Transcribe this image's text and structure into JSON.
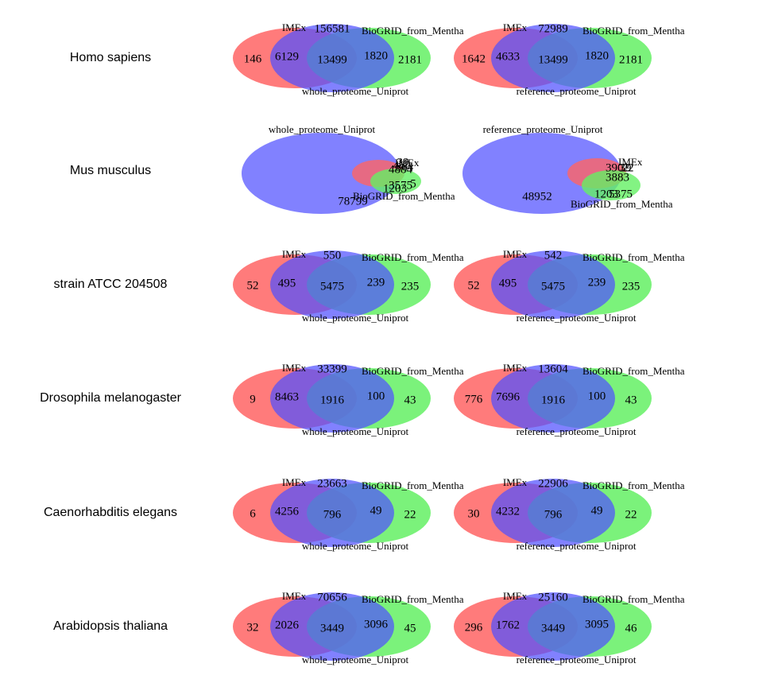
{
  "colors": {
    "red": "#ff6464",
    "blue": "#5050ff",
    "green": "#64f064"
  },
  "set_labels": {
    "imex": "IMEx",
    "biogrid": "BioGRID_from_Mentha",
    "whole": "whole_proteome_Uniprot",
    "reference": "reference_proteome_Uniprot"
  },
  "rows": [
    {
      "species": "Homo sapiens",
      "layout": "standard",
      "diagrams": [
        {
          "proteome": "whole_proteome_Uniprot",
          "imex_only": "146",
          "top": "156581",
          "imex_proteome": "6129",
          "center": "13499",
          "biogrid_proteome": "1820",
          "biogrid_only": "2181"
        },
        {
          "proteome": "reference_proteome_Uniprot",
          "imex_only": "1642",
          "top": "72989",
          "imex_proteome": "4633",
          "center": "13499",
          "biogrid_proteome": "1820",
          "biogrid_only": "2181"
        }
      ]
    },
    {
      "species": "Mus musculus",
      "layout": "mus",
      "diagrams": [
        {
          "proteome": "whole_proteome_Uniprot",
          "big": "78799",
          "labels": [
            "4884",
            "39",
            "402",
            "364",
            "3575",
            "1203",
            "5"
          ]
        },
        {
          "proteome": "reference_proteome_Uniprot",
          "big": "48952",
          "labels": [
            "3902",
            "39",
            "3883",
            "1203",
            "5375",
            "22"
          ]
        }
      ]
    },
    {
      "species": "strain ATCC 204508",
      "layout": "standard",
      "diagrams": [
        {
          "proteome": "whole_proteome_Uniprot",
          "imex_only": "52",
          "top": "550",
          "imex_proteome": "495",
          "center": "5475",
          "biogrid_proteome": "239",
          "biogrid_only": "235"
        },
        {
          "proteome": "reference_proteome_Uniprot",
          "imex_only": "52",
          "top": "542",
          "imex_proteome": "495",
          "center": "5475",
          "biogrid_proteome": "239",
          "biogrid_only": "235"
        }
      ]
    },
    {
      "species": "Drosophila melanogaster",
      "layout": "standard",
      "diagrams": [
        {
          "proteome": "whole_proteome_Uniprot",
          "imex_only": "9",
          "top": "33399",
          "imex_proteome": "8463",
          "center": "1916",
          "biogrid_proteome": "100",
          "biogrid_only": "43"
        },
        {
          "proteome": "reference_proteome_Uniprot",
          "imex_only": "776",
          "top": "13604",
          "imex_proteome": "7696",
          "center": "1916",
          "biogrid_proteome": "100",
          "biogrid_only": "43"
        }
      ]
    },
    {
      "species": "Caenorhabditis elegans",
      "layout": "standard",
      "diagrams": [
        {
          "proteome": "whole_proteome_Uniprot",
          "imex_only": "6",
          "top": "23663",
          "imex_proteome": "4256",
          "center": "796",
          "biogrid_proteome": "49",
          "biogrid_only": "22"
        },
        {
          "proteome": "reference_proteome_Uniprot",
          "imex_only": "30",
          "top": "22906",
          "imex_proteome": "4232",
          "center": "796",
          "biogrid_proteome": "49",
          "biogrid_only": "22"
        }
      ]
    },
    {
      "species": "Arabidopsis thaliana",
      "layout": "standard",
      "diagrams": [
        {
          "proteome": "whole_proteome_Uniprot",
          "imex_only": "32",
          "top": "70656",
          "imex_proteome": "2026",
          "center": "3449",
          "biogrid_proteome": "3096",
          "biogrid_only": "45"
        },
        {
          "proteome": "reference_proteome_Uniprot",
          "imex_only": "296",
          "top": "25160",
          "imex_proteome": "1762",
          "center": "3449",
          "biogrid_proteome": "3095",
          "biogrid_only": "46"
        }
      ]
    }
  ]
}
